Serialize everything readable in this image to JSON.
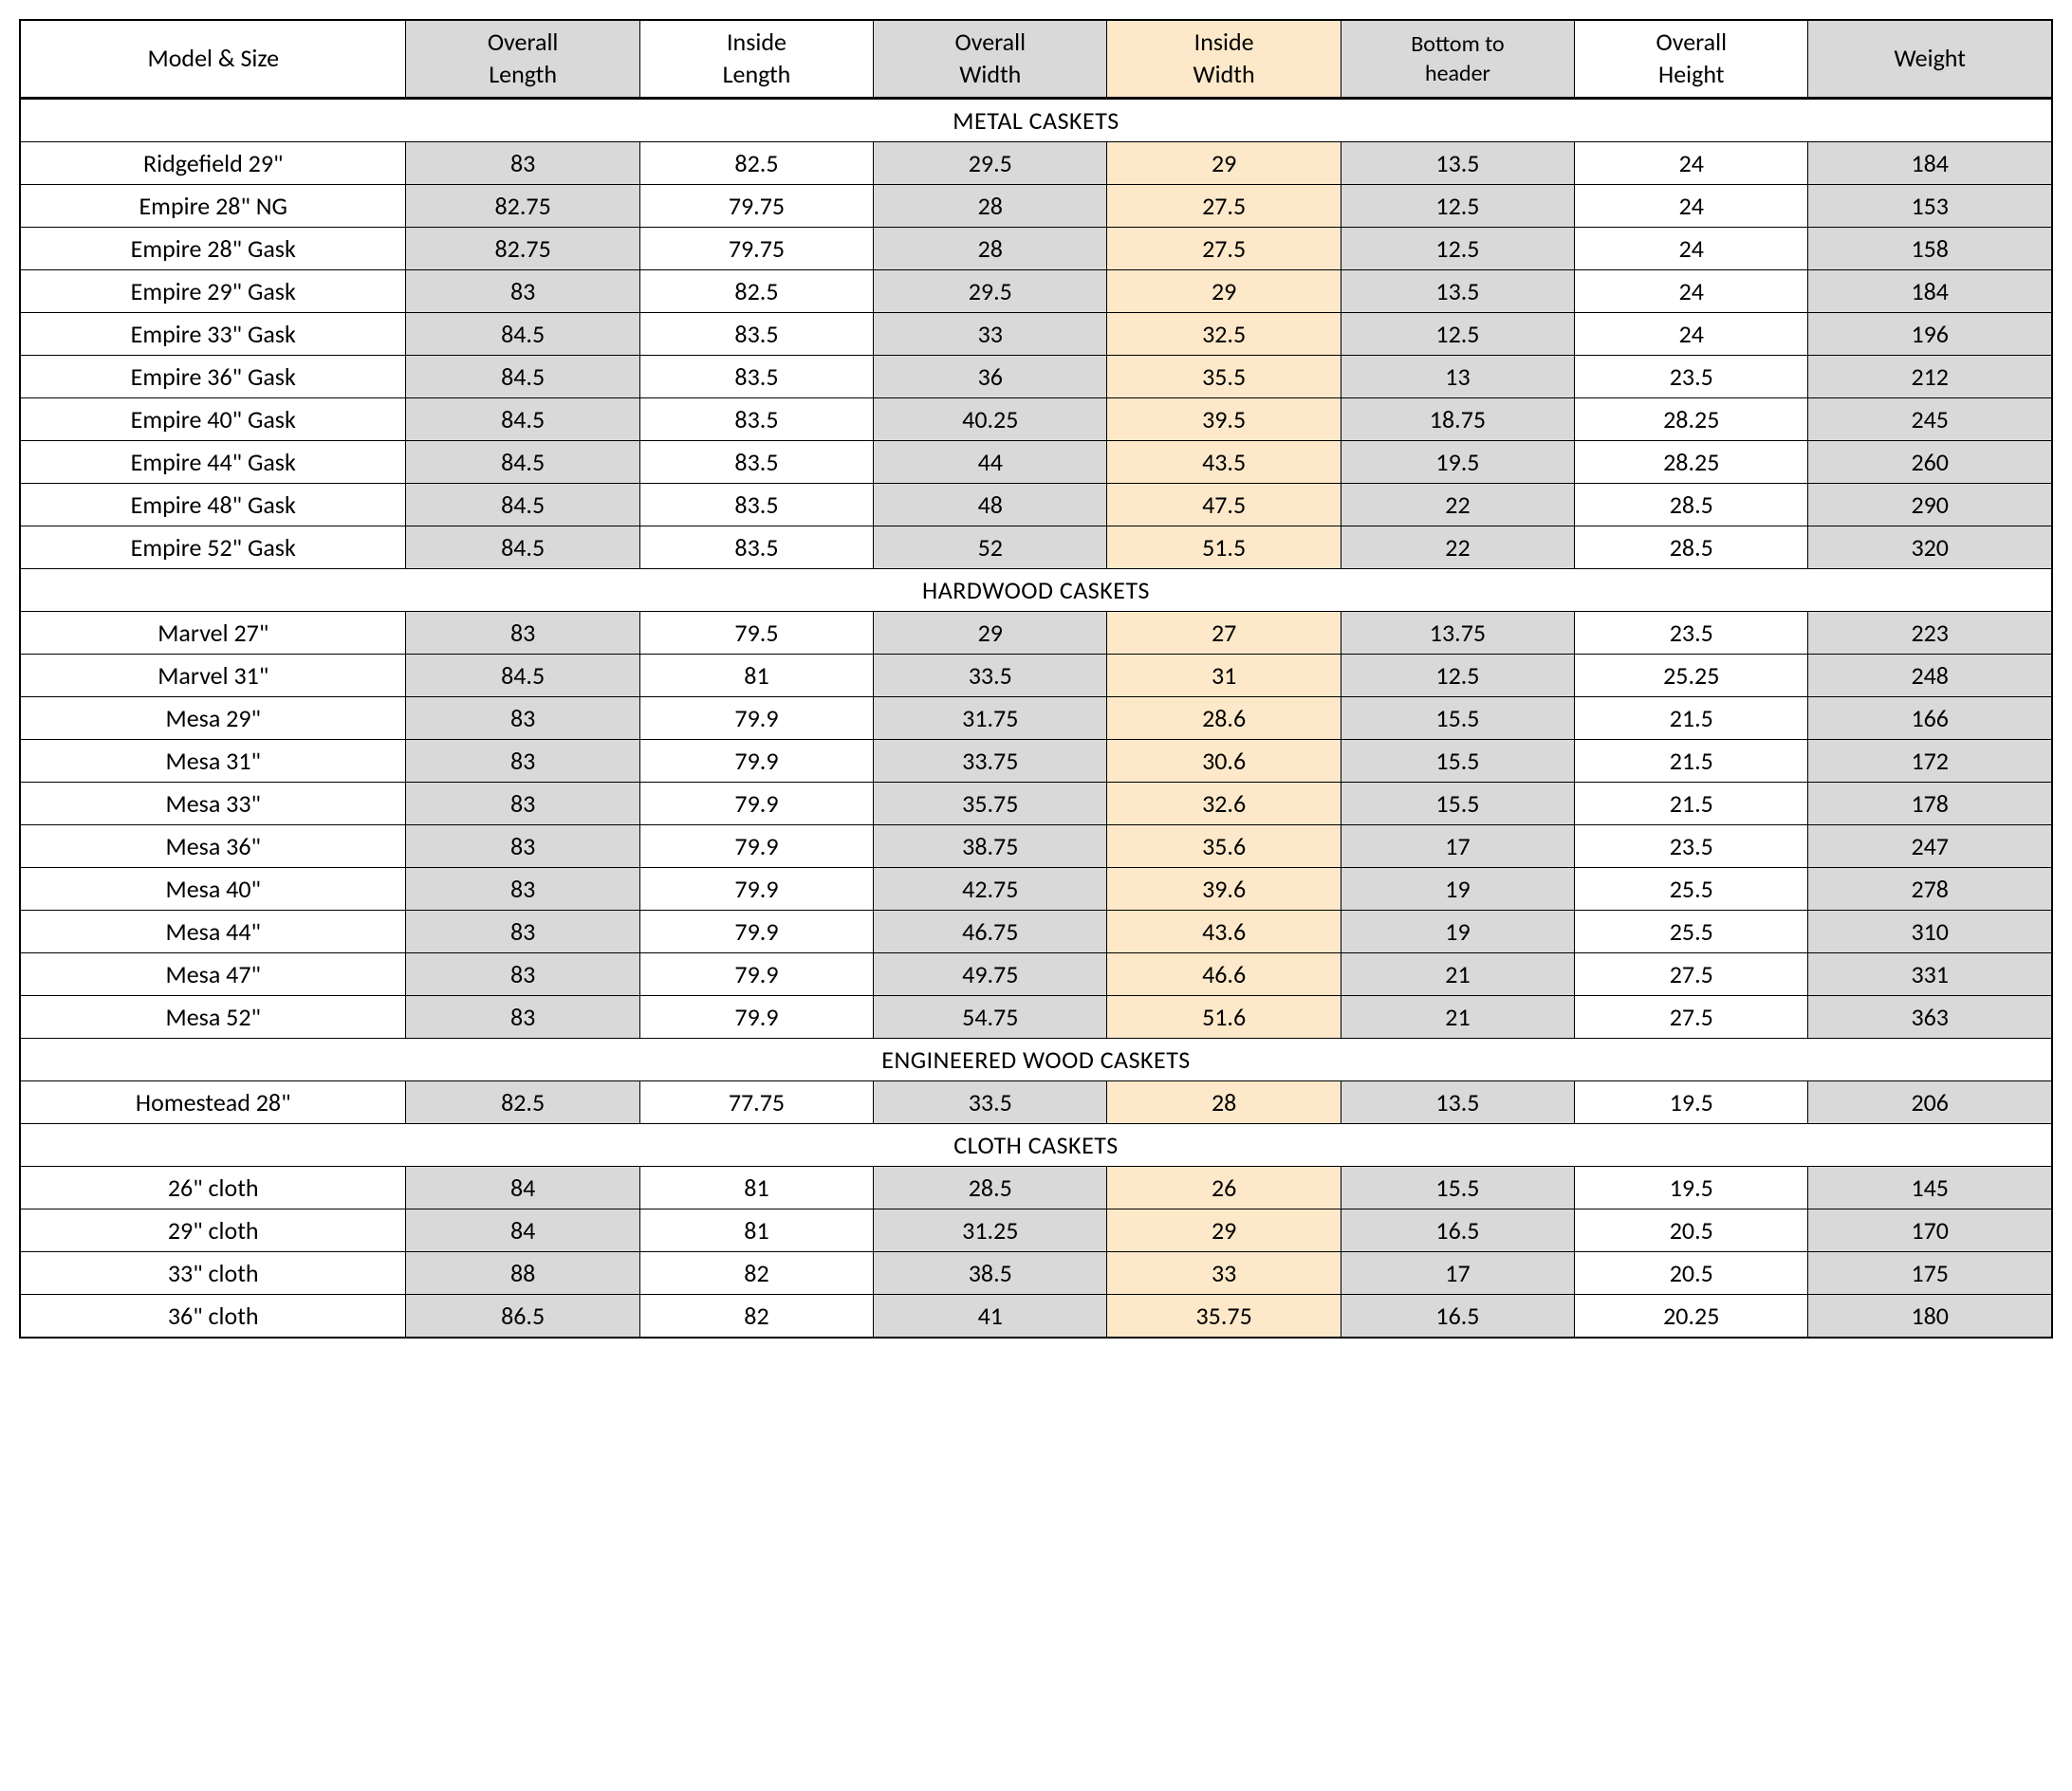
{
  "colors": {
    "gray": "#d9d9d9",
    "cream": "#fde9c9",
    "white": "#ffffff",
    "border": "#000000"
  },
  "typography": {
    "font_family": "Calibri",
    "cell_fontsize_pt": 20,
    "header_fontsize_pt": 20,
    "section_fontsize_pt": 20,
    "bottom_to_header_fontsize_pt": 18,
    "font_weight": "regular"
  },
  "columns": [
    {
      "key": "model",
      "line1": "",
      "line2": "Model & Size",
      "bg": "white",
      "width_pct": 19
    },
    {
      "key": "overall_length",
      "line1": "Overall",
      "line2": "Length",
      "bg": "gray",
      "width_pct": 11.5
    },
    {
      "key": "inside_length",
      "line1": "Inside",
      "line2": "Length",
      "bg": "white",
      "width_pct": 11.5
    },
    {
      "key": "overall_width",
      "line1": "Overall",
      "line2": "Width",
      "bg": "gray",
      "width_pct": 11.5
    },
    {
      "key": "inside_width",
      "line1": "Inside",
      "line2": "Width",
      "bg": "cream",
      "width_pct": 11.5
    },
    {
      "key": "bottom_header",
      "line1": "Bottom to",
      "line2": "header",
      "bg": "gray",
      "width_pct": 11.5,
      "small": true
    },
    {
      "key": "overall_height",
      "line1": "Overall",
      "line2": "Height",
      "bg": "white",
      "width_pct": 11.5
    },
    {
      "key": "weight",
      "line1": "",
      "line2": "Weight",
      "bg": "gray",
      "width_pct": 12
    }
  ],
  "sections": [
    {
      "title": "METAL CASKETS",
      "rows": [
        {
          "model": "Ridgefield 29\"",
          "overall_length": "83",
          "inside_length": "82.5",
          "overall_width": "29.5",
          "inside_width": "29",
          "bottom_header": "13.5",
          "overall_height": "24",
          "weight": "184"
        },
        {
          "model": "Empire 28\" NG",
          "overall_length": "82.75",
          "inside_length": "79.75",
          "overall_width": "28",
          "inside_width": "27.5",
          "bottom_header": "12.5",
          "overall_height": "24",
          "weight": "153"
        },
        {
          "model": "Empire 28\" Gask",
          "overall_length": "82.75",
          "inside_length": "79.75",
          "overall_width": "28",
          "inside_width": "27.5",
          "bottom_header": "12.5",
          "overall_height": "24",
          "weight": "158"
        },
        {
          "model": "Empire 29\" Gask",
          "overall_length": "83",
          "inside_length": "82.5",
          "overall_width": "29.5",
          "inside_width": "29",
          "bottom_header": "13.5",
          "overall_height": "24",
          "weight": "184"
        },
        {
          "model": "Empire 33\" Gask",
          "overall_length": "84.5",
          "inside_length": "83.5",
          "overall_width": "33",
          "inside_width": "32.5",
          "bottom_header": "12.5",
          "overall_height": "24",
          "weight": "196"
        },
        {
          "model": "Empire 36\" Gask",
          "overall_length": "84.5",
          "inside_length": "83.5",
          "overall_width": "36",
          "inside_width": "35.5",
          "bottom_header": "13",
          "overall_height": "23.5",
          "weight": "212"
        },
        {
          "model": "Empire 40\" Gask",
          "overall_length": "84.5",
          "inside_length": "83.5",
          "overall_width": "40.25",
          "inside_width": "39.5",
          "bottom_header": "18.75",
          "overall_height": "28.25",
          "weight": "245"
        },
        {
          "model": "Empire 44\" Gask",
          "overall_length": "84.5",
          "inside_length": "83.5",
          "overall_width": "44",
          "inside_width": "43.5",
          "bottom_header": "19.5",
          "overall_height": "28.25",
          "weight": "260"
        },
        {
          "model": "Empire 48\" Gask",
          "overall_length": "84.5",
          "inside_length": "83.5",
          "overall_width": "48",
          "inside_width": "47.5",
          "bottom_header": "22",
          "overall_height": "28.5",
          "weight": "290"
        },
        {
          "model": "Empire 52\" Gask",
          "overall_length": "84.5",
          "inside_length": "83.5",
          "overall_width": "52",
          "inside_width": "51.5",
          "bottom_header": "22",
          "overall_height": "28.5",
          "weight": "320"
        }
      ]
    },
    {
      "title": "HARDWOOD CASKETS",
      "rows": [
        {
          "model": "Marvel 27\"",
          "overall_length": "83",
          "inside_length": "79.5",
          "overall_width": "29",
          "inside_width": "27",
          "bottom_header": "13.75",
          "overall_height": "23.5",
          "weight": "223"
        },
        {
          "model": "Marvel 31\"",
          "overall_length": "84.5",
          "inside_length": "81",
          "overall_width": "33.5",
          "inside_width": "31",
          "bottom_header": "12.5",
          "overall_height": "25.25",
          "weight": "248"
        },
        {
          "model": "Mesa 29\"",
          "overall_length": "83",
          "inside_length": "79.9",
          "overall_width": "31.75",
          "inside_width": "28.6",
          "bottom_header": "15.5",
          "overall_height": "21.5",
          "weight": "166"
        },
        {
          "model": "Mesa 31\"",
          "overall_length": "83",
          "inside_length": "79.9",
          "overall_width": "33.75",
          "inside_width": "30.6",
          "bottom_header": "15.5",
          "overall_height": "21.5",
          "weight": "172"
        },
        {
          "model": "Mesa 33\"",
          "overall_length": "83",
          "inside_length": "79.9",
          "overall_width": "35.75",
          "inside_width": "32.6",
          "bottom_header": "15.5",
          "overall_height": "21.5",
          "weight": "178"
        },
        {
          "model": "Mesa 36\"",
          "overall_length": "83",
          "inside_length": "79.9",
          "overall_width": "38.75",
          "inside_width": "35.6",
          "bottom_header": "17",
          "overall_height": "23.5",
          "weight": "247"
        },
        {
          "model": "Mesa 40\"",
          "overall_length": "83",
          "inside_length": "79.9",
          "overall_width": "42.75",
          "inside_width": "39.6",
          "bottom_header": "19",
          "overall_height": "25.5",
          "weight": "278"
        },
        {
          "model": "Mesa 44\"",
          "overall_length": "83",
          "inside_length": "79.9",
          "overall_width": "46.75",
          "inside_width": "43.6",
          "bottom_header": "19",
          "overall_height": "25.5",
          "weight": "310"
        },
        {
          "model": "Mesa 47\"",
          "overall_length": "83",
          "inside_length": "79.9",
          "overall_width": "49.75",
          "inside_width": "46.6",
          "bottom_header": "21",
          "overall_height": "27.5",
          "weight": "331"
        },
        {
          "model": "Mesa 52\"",
          "overall_length": "83",
          "inside_length": "79.9",
          "overall_width": "54.75",
          "inside_width": "51.6",
          "bottom_header": "21",
          "overall_height": "27.5",
          "weight": "363"
        }
      ]
    },
    {
      "title": "ENGINEERED WOOD CASKETS",
      "rows": [
        {
          "model": "Homestead 28\"",
          "overall_length": "82.5",
          "inside_length": "77.75",
          "overall_width": "33.5",
          "inside_width": "28",
          "bottom_header": "13.5",
          "overall_height": "19.5",
          "weight": "206"
        }
      ]
    },
    {
      "title": "CLOTH CASKETS",
      "rows": [
        {
          "model": "26\" cloth",
          "overall_length": "84",
          "inside_length": "81",
          "overall_width": "28.5",
          "inside_width": "26",
          "bottom_header": "15.5",
          "overall_height": "19.5",
          "weight": "145"
        },
        {
          "model": "29\" cloth",
          "overall_length": "84",
          "inside_length": "81",
          "overall_width": "31.25",
          "inside_width": "29",
          "bottom_header": "16.5",
          "overall_height": "20.5",
          "weight": "170"
        },
        {
          "model": "33\" cloth",
          "overall_length": "88",
          "inside_length": "82",
          "overall_width": "38.5",
          "inside_width": "33",
          "bottom_header": "17",
          "overall_height": "20.5",
          "weight": "175"
        },
        {
          "model": "36\" cloth",
          "overall_length": "86.5",
          "inside_length": "82",
          "overall_width": "41",
          "inside_width": "35.75",
          "bottom_header": "16.5",
          "overall_height": "20.25",
          "weight": "180"
        }
      ]
    }
  ]
}
